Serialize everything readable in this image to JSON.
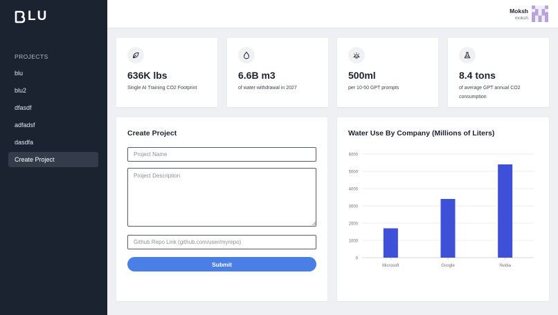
{
  "app": {
    "logo_text": "LU"
  },
  "sidebar": {
    "heading": "PROJECTS",
    "items": [
      {
        "label": "blu",
        "active": false
      },
      {
        "label": "blu2",
        "active": false
      },
      {
        "label": "dfasdf",
        "active": false
      },
      {
        "label": "adfadsf",
        "active": false
      },
      {
        "label": "dasdfa",
        "active": false
      },
      {
        "label": "Create Project",
        "active": true
      }
    ]
  },
  "user": {
    "name": "Moksh",
    "handle": "moksh"
  },
  "stats": [
    {
      "icon": "leaf-icon",
      "value": "636K lbs",
      "label": "Single AI Training CO2 Footprint"
    },
    {
      "icon": "water-drop-icon",
      "value": "6.6B m3",
      "label": "of water withdrawal in 2027"
    },
    {
      "icon": "lightbulb-icon",
      "value": "500ml",
      "label": "per 10-50 GPT prompts"
    },
    {
      "icon": "flask-icon",
      "value": "8.4 tons",
      "label": "of average GPT annual CO2 consumption"
    }
  ],
  "form": {
    "title": "Create Project",
    "name_placeholder": "Project Name",
    "description_placeholder": "Project Description",
    "repo_placeholder": "Github Repo Link (github.com/user/myrepo)",
    "submit_label": "Submit"
  },
  "chart_data": {
    "type": "bar",
    "title": "Water Use By Company (Millions of Liters)",
    "categories": [
      "Microsoft",
      "Google",
      "Nvidia"
    ],
    "values": [
      1700,
      3400,
      5400
    ],
    "ylim": [
      0,
      6000
    ],
    "yticks": [
      0,
      1000,
      2000,
      3000,
      4000,
      5000,
      6000
    ],
    "grid": true,
    "bar_color": "#3f50d8",
    "xlabel": "",
    "ylabel": ""
  },
  "colors": {
    "sidebar": "#1b2230",
    "accent": "#4a7fe6",
    "bar": "#3f50d8"
  }
}
